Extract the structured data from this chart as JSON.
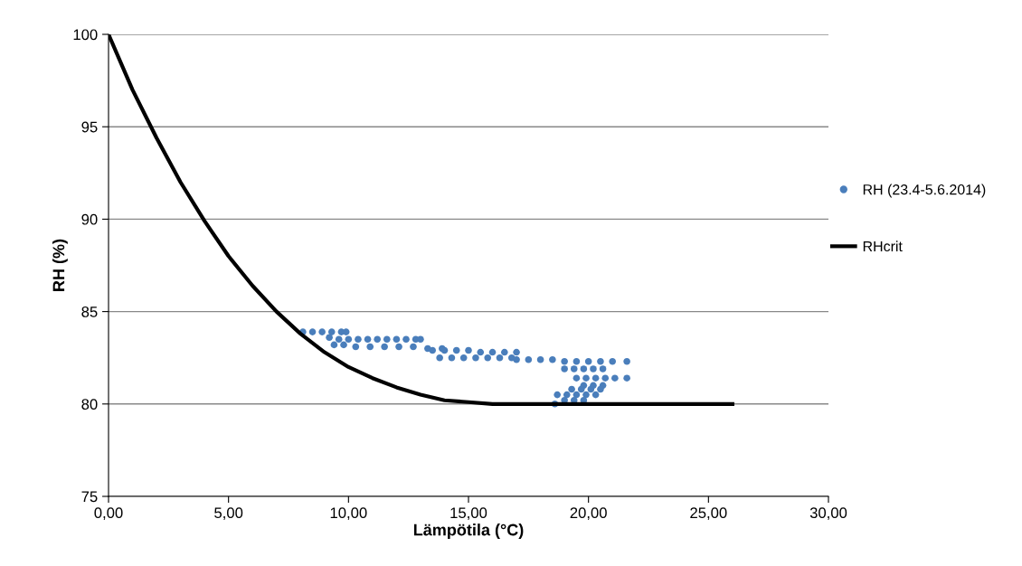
{
  "chart_data": {
    "type": "scatter",
    "xlabel": "Lämpötila (°C)",
    "ylabel": "RH (%)",
    "xlim": [
      0,
      30
    ],
    "ylim": [
      75,
      100
    ],
    "xticks": [
      {
        "value": 0,
        "label": "0,00"
      },
      {
        "value": 5,
        "label": "5,00"
      },
      {
        "value": 10,
        "label": "10,00"
      },
      {
        "value": 15,
        "label": "15,00"
      },
      {
        "value": 20,
        "label": "20,00"
      },
      {
        "value": 25,
        "label": "25,00"
      },
      {
        "value": 30,
        "label": "30,00"
      }
    ],
    "yticks": [
      75,
      80,
      85,
      90,
      95,
      100
    ],
    "grid": "y",
    "legend": "right",
    "marker": "circle",
    "series": [
      {
        "name": "RH (23.4-5.6.2014)",
        "color": "#4a7ebb",
        "x": [
          8.1,
          8.5,
          8.9,
          9.3,
          9.7,
          9.9,
          9.2,
          9.6,
          10.0,
          10.4,
          10.8,
          11.2,
          11.6,
          12.0,
          12.4,
          12.8,
          13.0,
          9.4,
          9.8,
          10.3,
          10.9,
          11.5,
          12.1,
          12.7,
          13.3,
          13.9,
          13.5,
          14.0,
          14.5,
          15.0,
          15.5,
          16.0,
          16.5,
          17.0,
          13.8,
          14.3,
          14.8,
          15.3,
          15.8,
          16.3,
          16.8,
          17.0,
          17.5,
          18.0,
          18.5,
          19.0,
          19.5,
          20.0,
          20.5,
          21.0,
          21.6,
          19.0,
          19.4,
          19.8,
          20.2,
          20.6,
          19.5,
          19.9,
          20.3,
          20.7,
          21.1,
          21.6,
          19.8,
          20.2,
          20.6,
          19.3,
          19.7,
          20.1,
          20.5,
          18.7,
          19.1,
          19.5,
          19.9,
          20.3,
          18.6,
          19.0,
          19.4,
          19.8
        ],
        "values": [
          83.9,
          83.9,
          83.9,
          83.9,
          83.9,
          83.9,
          83.6,
          83.5,
          83.5,
          83.5,
          83.5,
          83.5,
          83.5,
          83.5,
          83.5,
          83.5,
          83.5,
          83.2,
          83.2,
          83.1,
          83.1,
          83.1,
          83.1,
          83.1,
          83.0,
          83.0,
          82.9,
          82.9,
          82.9,
          82.9,
          82.8,
          82.8,
          82.8,
          82.8,
          82.5,
          82.5,
          82.5,
          82.5,
          82.5,
          82.5,
          82.5,
          82.4,
          82.4,
          82.4,
          82.4,
          82.3,
          82.3,
          82.3,
          82.3,
          82.3,
          82.3,
          81.9,
          81.9,
          81.9,
          81.9,
          81.9,
          81.4,
          81.4,
          81.4,
          81.4,
          81.4,
          81.4,
          81.0,
          81.0,
          81.0,
          80.8,
          80.8,
          80.8,
          80.8,
          80.5,
          80.5,
          80.5,
          80.5,
          80.5,
          80.0,
          80.2,
          80.2,
          80.2
        ]
      },
      {
        "name": "RHcrit",
        "color": "#000000",
        "type": "line",
        "marker": "none",
        "x": [
          0,
          1,
          2,
          3,
          4,
          5,
          6,
          7,
          8,
          9,
          10,
          11,
          12,
          13,
          14,
          15,
          16,
          17,
          18,
          26
        ],
        "values": [
          100,
          97.0,
          94.4,
          92.0,
          89.9,
          88.0,
          86.4,
          85.0,
          83.8,
          82.8,
          82.0,
          81.4,
          80.9,
          80.5,
          80.2,
          80.1,
          80.0,
          80.0,
          80.0,
          80.0
        ]
      }
    ]
  }
}
